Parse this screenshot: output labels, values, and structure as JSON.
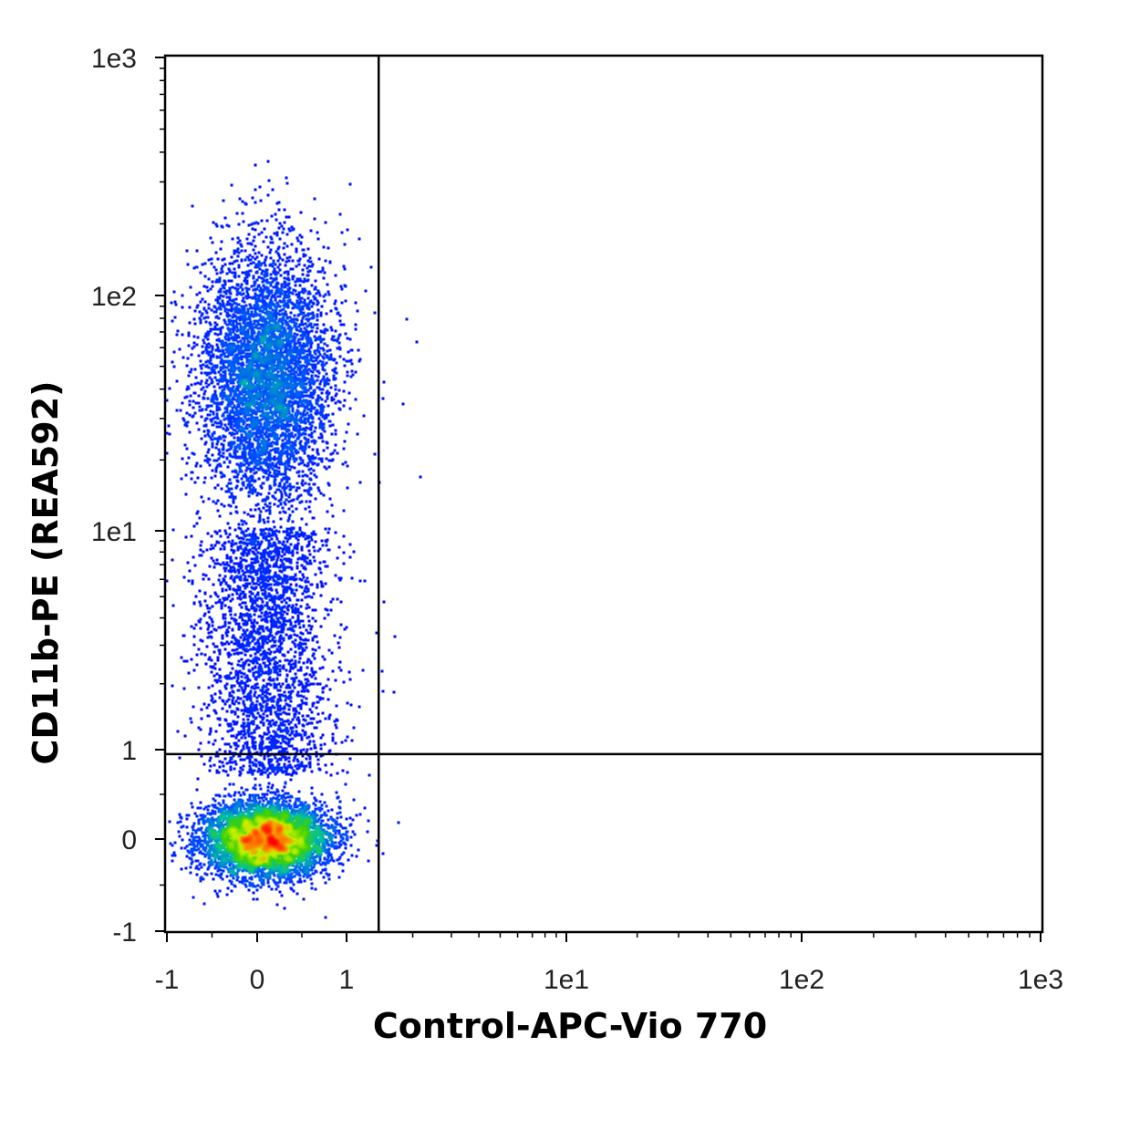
{
  "chart_data": {
    "type": "scatter",
    "title": "",
    "xlabel": "Control-APC-Vio 770",
    "ylabel": "CD11b-PE (REA592)",
    "x_scale": "biexponential",
    "y_scale": "biexponential",
    "xlim": [
      -1,
      1000
    ],
    "ylim": [
      -1,
      1000
    ],
    "x_ticks": [
      {
        "value": -1,
        "label": "-1"
      },
      {
        "value": 0,
        "label": "0"
      },
      {
        "value": 1,
        "label": "1"
      },
      {
        "value": 10,
        "label": "1e1"
      },
      {
        "value": 100,
        "label": "1e2"
      },
      {
        "value": 1000,
        "label": "1e3"
      }
    ],
    "y_ticks": [
      {
        "value": -1,
        "label": "-1"
      },
      {
        "value": 0,
        "label": "0"
      },
      {
        "value": 1,
        "label": "1"
      },
      {
        "value": 10,
        "label": "1e1"
      },
      {
        "value": 100,
        "label": "1e2"
      },
      {
        "value": 1000,
        "label": "1e3"
      }
    ],
    "quadrant_gate": {
      "x": 1.4,
      "y": 0.95
    },
    "populations": [
      {
        "x_center": 0.1,
        "y_center": 0.0,
        "density": "highest"
      },
      {
        "x_center": 0.1,
        "y_center": 45,
        "density": "medium"
      }
    ],
    "density_colors": [
      "#0000ff",
      "#0050ff",
      "#00c0a0",
      "#40d000",
      "#c8f000",
      "#ff8000",
      "#ff0000"
    ],
    "grid": false,
    "legend": "none"
  }
}
